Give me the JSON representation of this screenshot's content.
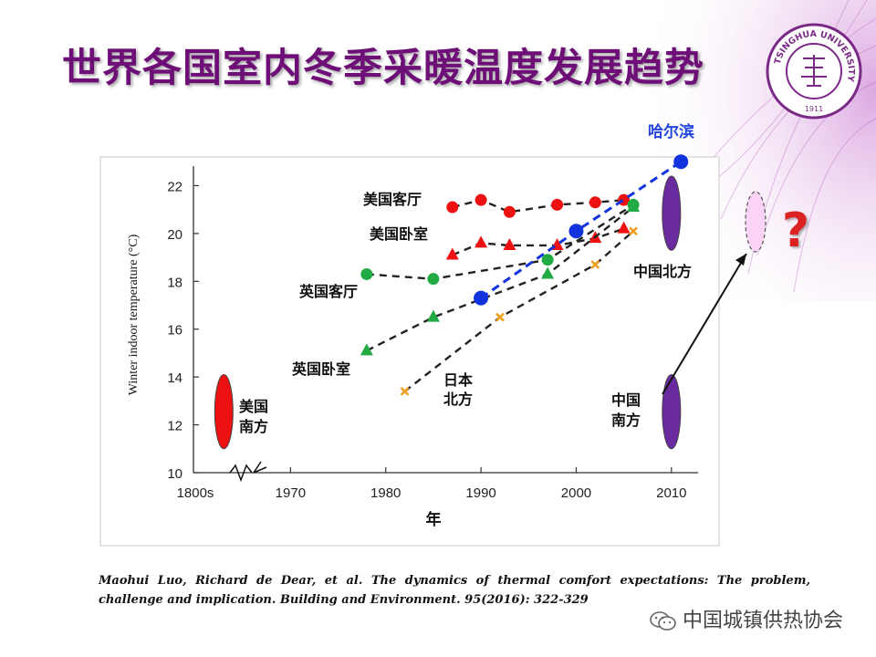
{
  "title": "世界各国室内冬季采暖温度发展趋势",
  "logo": {
    "text": "TSINGHUA UNIVERSITY",
    "year": "1911"
  },
  "chart_data": {
    "type": "line",
    "ylabel": "Winter indoor temperature (°C)",
    "xlabel": "年",
    "x_ticks": [
      "1800s",
      "1970",
      "1980",
      "1990",
      "2000",
      "2010"
    ],
    "y_ticks": [
      10,
      12,
      14,
      16,
      18,
      20,
      22
    ],
    "ylim": [
      10,
      23.2
    ],
    "xlim": [
      1960,
      2015
    ],
    "series": [
      {
        "name": "美国客厅",
        "marker": "circle",
        "color": "#ee1111",
        "x": [
          1987,
          1990,
          1993,
          1998,
          2002,
          2005
        ],
        "y": [
          21.1,
          21.4,
          20.9,
          21.2,
          21.3,
          21.4
        ]
      },
      {
        "name": "美国卧室",
        "marker": "triangle",
        "color": "#ee1111",
        "x": [
          1987,
          1990,
          1993,
          1998,
          2002,
          2005
        ],
        "y": [
          19.1,
          19.6,
          19.5,
          19.5,
          19.8,
          20.2
        ]
      },
      {
        "name": "英国客厅",
        "marker": "circle",
        "color": "#22aa44",
        "x": [
          1978,
          1985,
          1997,
          2006
        ],
        "y": [
          18.3,
          18.1,
          18.9,
          21.2
        ]
      },
      {
        "name": "英国卧室",
        "marker": "triangle",
        "color": "#22aa44",
        "x": [
          1978,
          1985,
          1997,
          2006
        ],
        "y": [
          15.1,
          16.5,
          18.3,
          21.1
        ]
      },
      {
        "name": "日本北方",
        "marker": "cross",
        "color": "#f0a020",
        "x": [
          1982,
          1992,
          2002,
          2006
        ],
        "y": [
          13.4,
          16.5,
          18.7,
          20.1
        ]
      },
      {
        "name": "哈尔滨",
        "marker": "big-circle",
        "color": "#1133dd",
        "x": [
          1990,
          2000,
          2011
        ],
        "y": [
          17.3,
          20.1,
          23.0
        ]
      }
    ],
    "ranges": [
      {
        "name": "美国南方",
        "color": "#ee1111",
        "x": 1963,
        "y_min": 11.0,
        "y_max": 14.1
      },
      {
        "name": "中国北方",
        "color": "#6a2aa0",
        "x": 2010,
        "y_min": 19.3,
        "y_max": 22.4
      },
      {
        "name": "中国南方",
        "color": "#6a2aa0",
        "x": 2010,
        "y_min": 11.0,
        "y_max": 14.1
      }
    ],
    "annotations": {
      "question": "?",
      "future_label": ""
    }
  },
  "reference": "Maohui Luo, Richard de Dear, et al. The dynamics of thermal comfort expectations: The problem, challenge and implication. Building and Environment. 95(2016): 322-329",
  "footer": "中国城镇供热协会"
}
